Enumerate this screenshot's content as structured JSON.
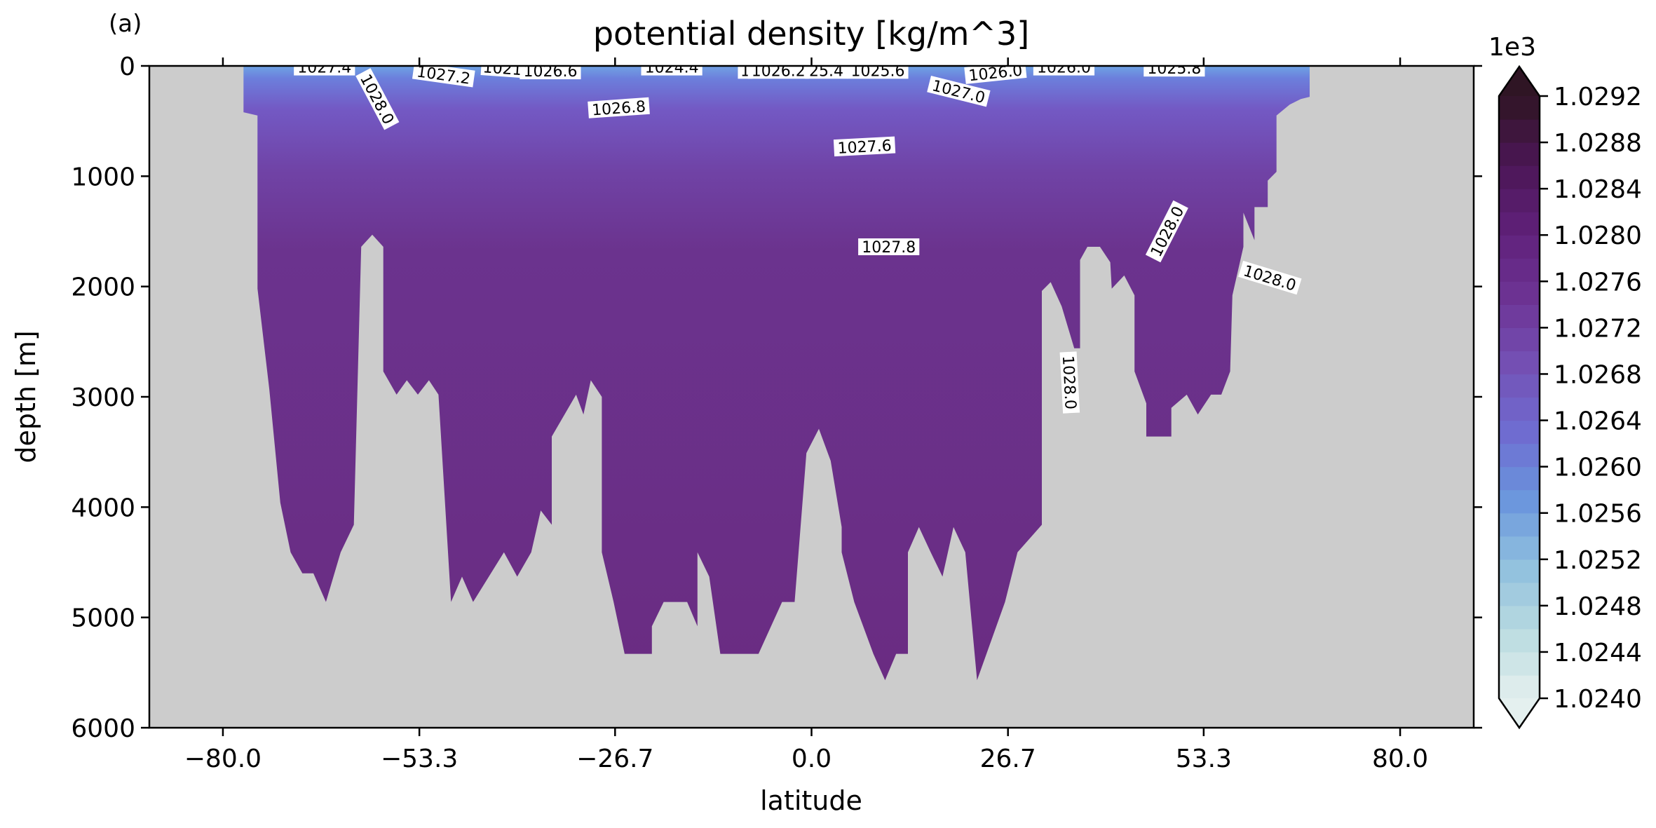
{
  "panel_label": "(a)",
  "colors": {
    "land": "#cccccc",
    "deep_water": "#6a2c82",
    "colormap": [
      "#e4f0ef",
      "#b9dbe0",
      "#8fbfde",
      "#6a95dd",
      "#6f6bd0",
      "#7450b4",
      "#6d3394",
      "#5f2079",
      "#4b1654",
      "#2f1524"
    ]
  },
  "chart_data": {
    "type": "heatmap",
    "title": "potential density [kg/m^3]",
    "xlabel": "latitude",
    "ylabel": "depth [m]",
    "xlim": [
      -90,
      90
    ],
    "ylim": [
      6000,
      0
    ],
    "xticks": [
      -80.0,
      -53.3,
      -26.7,
      0.0,
      26.7,
      53.3,
      80.0
    ],
    "xticklabels": [
      "−80.0",
      "−53.3",
      "−26.7",
      "0.0",
      "26.7",
      "53.3",
      "80.0"
    ],
    "yticks": [
      0,
      1000,
      2000,
      3000,
      4000,
      5000,
      6000
    ],
    "yticklabels": [
      "0",
      "1000",
      "2000",
      "3000",
      "4000",
      "5000",
      "6000"
    ],
    "colorbar": {
      "offset_label": "1e3",
      "min": 1.024,
      "max": 1.0292,
      "step": 0.0002,
      "ticks": [
        1.024,
        1.0244,
        1.0248,
        1.0252,
        1.0256,
        1.026,
        1.0264,
        1.0268,
        1.0272,
        1.0276,
        1.028,
        1.0284,
        1.0288,
        1.0292
      ],
      "ticklabels": [
        "1.0240",
        "1.0244",
        "1.0248",
        "1.0252",
        "1.0256",
        "1.0260",
        "1.0264",
        "1.0268",
        "1.0272",
        "1.0276",
        "1.0280",
        "1.0284",
        "1.0288",
        "1.0292"
      ],
      "extend": "both"
    },
    "bottom_profile": [
      [
        -75.3,
        2020
      ],
      [
        -73.7,
        2930
      ],
      [
        -72.2,
        3960
      ],
      [
        -70.8,
        4410
      ],
      [
        -69.2,
        4600
      ],
      [
        -67.7,
        4600
      ],
      [
        -66.0,
        4860
      ],
      [
        -64.0,
        4410
      ],
      [
        -62.2,
        4160
      ],
      [
        -61.2,
        1640
      ],
      [
        -59.7,
        1530
      ],
      [
        -58.2,
        1640
      ],
      [
        -58.2,
        2770
      ],
      [
        -56.4,
        2980
      ],
      [
        -55.0,
        2850
      ],
      [
        -53.5,
        2980
      ],
      [
        -52.0,
        2850
      ],
      [
        -50.7,
        2980
      ],
      [
        -49.0,
        4860
      ],
      [
        -47.5,
        4630
      ],
      [
        -46.0,
        4860
      ],
      [
        -41.8,
        4410
      ],
      [
        -40.0,
        4630
      ],
      [
        -38.1,
        4410
      ],
      [
        -36.8,
        4030
      ],
      [
        -35.3,
        4160
      ],
      [
        -35.3,
        3360
      ],
      [
        -32.0,
        2980
      ],
      [
        -31.0,
        3160
      ],
      [
        -30.0,
        2850
      ],
      [
        -28.5,
        3000
      ],
      [
        -28.5,
        4410
      ],
      [
        -26.9,
        4860
      ],
      [
        -25.4,
        5330
      ],
      [
        -21.7,
        5330
      ],
      [
        -21.7,
        5080
      ],
      [
        -20.1,
        4860
      ],
      [
        -16.9,
        4860
      ],
      [
        -15.5,
        5080
      ],
      [
        -15.5,
        4410
      ],
      [
        -13.9,
        4630
      ],
      [
        -12.4,
        5330
      ],
      [
        -7.2,
        5330
      ],
      [
        -4.0,
        4860
      ],
      [
        -2.3,
        4860
      ],
      [
        -0.7,
        3510
      ],
      [
        1.0,
        3290
      ],
      [
        2.6,
        3580
      ],
      [
        4.1,
        4180
      ],
      [
        4.1,
        4410
      ],
      [
        5.8,
        4860
      ],
      [
        8.4,
        5330
      ],
      [
        10.0,
        5570
      ],
      [
        11.5,
        5330
      ],
      [
        13.1,
        5330
      ],
      [
        13.1,
        4410
      ],
      [
        14.6,
        4180
      ],
      [
        16.2,
        4410
      ],
      [
        17.8,
        4630
      ],
      [
        19.3,
        4180
      ],
      [
        20.9,
        4410
      ],
      [
        22.5,
        5570
      ],
      [
        26.3,
        4860
      ],
      [
        28.0,
        4410
      ],
      [
        31.3,
        4160
      ],
      [
        31.3,
        2040
      ],
      [
        32.5,
        1960
      ],
      [
        34.0,
        2180
      ],
      [
        35.7,
        2560
      ],
      [
        36.5,
        2560
      ],
      [
        36.5,
        1760
      ],
      [
        37.5,
        1640
      ],
      [
        39.2,
        1640
      ],
      [
        40.6,
        1780
      ],
      [
        40.8,
        2020
      ],
      [
        42.5,
        1900
      ],
      [
        43.9,
        2080
      ],
      [
        43.9,
        2770
      ],
      [
        45.5,
        3060
      ],
      [
        45.5,
        3360
      ],
      [
        48.9,
        3360
      ],
      [
        48.9,
        3100
      ],
      [
        51.0,
        2980
      ],
      [
        51.0,
        2980
      ],
      [
        52.5,
        3160
      ],
      [
        54.3,
        2980
      ],
      [
        55.7,
        2980
      ],
      [
        56.9,
        2770
      ],
      [
        57.2,
        2080
      ],
      [
        58.7,
        1640
      ],
      [
        58.7,
        1330
      ],
      [
        60.2,
        1580
      ],
      [
        60.2,
        1280
      ],
      [
        62.0,
        1280
      ],
      [
        62.0,
        1040
      ],
      [
        63.2,
        960
      ],
      [
        63.2,
        450
      ],
      [
        65.0,
        350
      ],
      [
        66.5,
        300
      ],
      [
        67.7,
        280
      ],
      [
        67.7,
        0
      ]
    ],
    "contour_labels": [
      {
        "text": "1027.4",
        "lat": -66.2,
        "depth": 10,
        "angle": 0
      },
      {
        "text": "1028.0",
        "lat": -59.0,
        "depth": 300,
        "angle": 62
      },
      {
        "text": "1027.2",
        "lat": -50.0,
        "depth": 80,
        "angle": 8
      },
      {
        "text": "1021",
        "lat": -42.0,
        "depth": 20,
        "angle": 4
      },
      {
        "text": "1026.6",
        "lat": -35.5,
        "depth": 45,
        "angle": 0
      },
      {
        "text": "1024.4",
        "lat": -19.0,
        "depth": 10,
        "angle": 0
      },
      {
        "text": "1026.8",
        "lat": -26.2,
        "depth": 380,
        "angle": -4
      },
      {
        "text": "1",
        "lat": -9.0,
        "depth": 40,
        "angle": 0
      },
      {
        "text": "1026.2",
        "lat": -4.5,
        "depth": 40,
        "angle": 0
      },
      {
        "text": "25.4",
        "lat": 2.0,
        "depth": 40,
        "angle": 0
      },
      {
        "text": "1025.6",
        "lat": 9.0,
        "depth": 40,
        "angle": 0
      },
      {
        "text": "1027.0",
        "lat": 20.0,
        "depth": 230,
        "angle": 14
      },
      {
        "text": "1026.0",
        "lat": 25.0,
        "depth": 60,
        "angle": -6
      },
      {
        "text": "1026.0",
        "lat": 34.3,
        "depth": 10,
        "angle": 0
      },
      {
        "text": "1025.8",
        "lat": 49.3,
        "depth": 20,
        "angle": 0
      },
      {
        "text": "1027.6",
        "lat": 7.2,
        "depth": 730,
        "angle": -3
      },
      {
        "text": "1027.8",
        "lat": 10.5,
        "depth": 1640,
        "angle": 0
      },
      {
        "text": "1028.0",
        "lat": 48.3,
        "depth": 1500,
        "angle": -63
      },
      {
        "text": "1028.0",
        "lat": 62.3,
        "depth": 1920,
        "angle": 17
      },
      {
        "text": "1028.0",
        "lat": 35.1,
        "depth": 2870,
        "angle": 87
      }
    ],
    "grid": false,
    "legend": "colorbar right"
  }
}
